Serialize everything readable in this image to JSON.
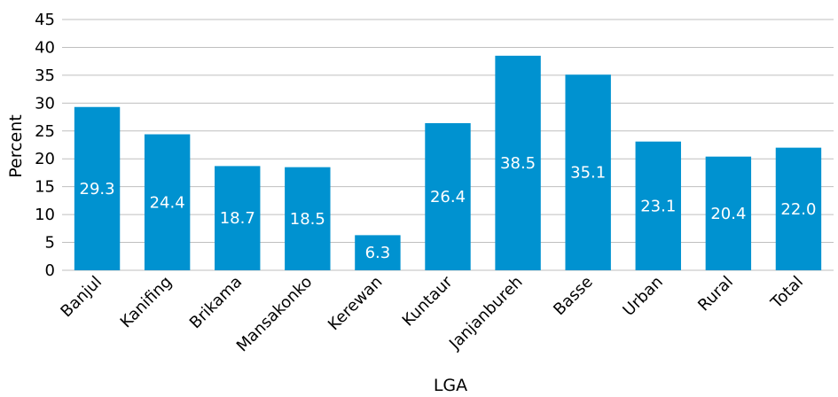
{
  "chart_data": {
    "type": "bar",
    "title": "",
    "xlabel": "LGA",
    "ylabel": "Percent",
    "categories": [
      "Banjul",
      "Kanifing",
      "Brikama",
      "Mansakonko",
      "Kerewan",
      "Kuntaur",
      "Janjanbureh",
      "Basse",
      "Urban",
      "Rural",
      "Total"
    ],
    "values": [
      29.3,
      24.4,
      18.7,
      18.5,
      6.3,
      26.4,
      38.5,
      35.1,
      23.1,
      20.4,
      22.0
    ],
    "data_labels": [
      "29.3",
      "24.4",
      "18.7",
      "18.5",
      "6.3",
      "26.4",
      "38.5",
      "35.1",
      "23.1",
      "20.4",
      "22.0"
    ],
    "ylim": [
      0,
      45
    ],
    "yticks": [
      0,
      5,
      10,
      15,
      20,
      25,
      30,
      35,
      40,
      45
    ],
    "grid": true,
    "legend": "none",
    "bar_color": "#0092d0",
    "label_color": "#ffffff"
  }
}
